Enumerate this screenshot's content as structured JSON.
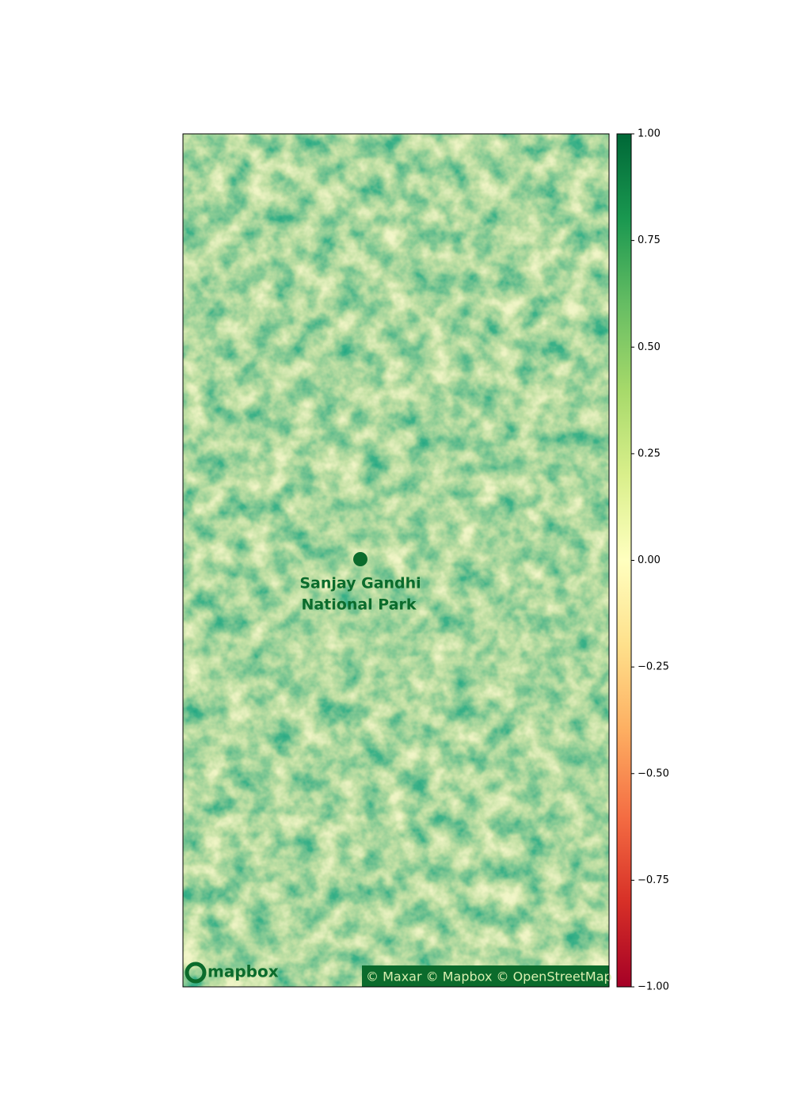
{
  "chart_data": {
    "type": "image",
    "colormap": "RdYlGn",
    "clim": [
      -1,
      1
    ],
    "cticks": [
      {
        "value": 1,
        "label": "1.00"
      },
      {
        "value": 0.75,
        "label": "0.75"
      },
      {
        "value": 0.5,
        "label": "0.50"
      },
      {
        "value": 0.25,
        "label": "0.25"
      },
      {
        "value": 0,
        "label": "0.00"
      },
      {
        "value": -0.25,
        "label": "−0.25"
      },
      {
        "value": -0.5,
        "label": "−0.50"
      },
      {
        "value": -0.75,
        "label": "−0.75"
      },
      {
        "value": -1,
        "label": "−1.00"
      }
    ],
    "map_labels": [
      "Sanjay Gandhi",
      "National Park"
    ],
    "logo": "mapbox",
    "attribution": "© Maxar © Mapbox © OpenStreetMap"
  }
}
